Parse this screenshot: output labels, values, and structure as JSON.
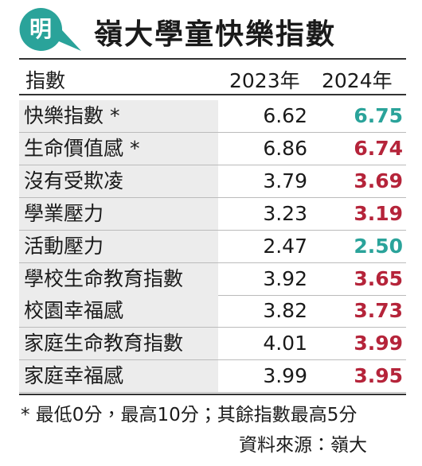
{
  "header": {
    "logo": "明",
    "title": "嶺大學童快樂指數"
  },
  "table": {
    "columns": [
      "指數",
      "2023年",
      "2024年"
    ],
    "rows": [
      {
        "label": "快樂指數 *",
        "y2023": "6.62",
        "y2024": "6.75",
        "color": "#2aa39a"
      },
      {
        "label": "生命價值感 *",
        "y2023": "6.86",
        "y2024": "6.74",
        "color": "#b5243a"
      },
      {
        "label": "沒有受欺凌",
        "y2023": "3.79",
        "y2024": "3.69",
        "color": "#b5243a"
      },
      {
        "label": "學業壓力",
        "y2023": "3.23",
        "y2024": "3.19",
        "color": "#b5243a"
      },
      {
        "label": "活動壓力",
        "y2023": "2.47",
        "y2024": "2.50",
        "color": "#2aa39a"
      },
      {
        "label": "學校生命教育指數",
        "y2023": "3.92",
        "y2024": "3.65",
        "color": "#b5243a"
      },
      {
        "label": "校園幸福感",
        "y2023": "3.82",
        "y2024": "3.73",
        "color": "#b5243a"
      },
      {
        "label": "家庭生命教育指數",
        "y2023": "4.01",
        "y2024": "3.99",
        "color": "#b5243a"
      },
      {
        "label": "家庭幸福感",
        "y2023": "3.99",
        "y2024": "3.95",
        "color": "#b5243a"
      }
    ]
  },
  "footer": {
    "note": "* 最低0分，最高10分；其餘指數最高5分",
    "source": "資料來源：嶺大"
  }
}
